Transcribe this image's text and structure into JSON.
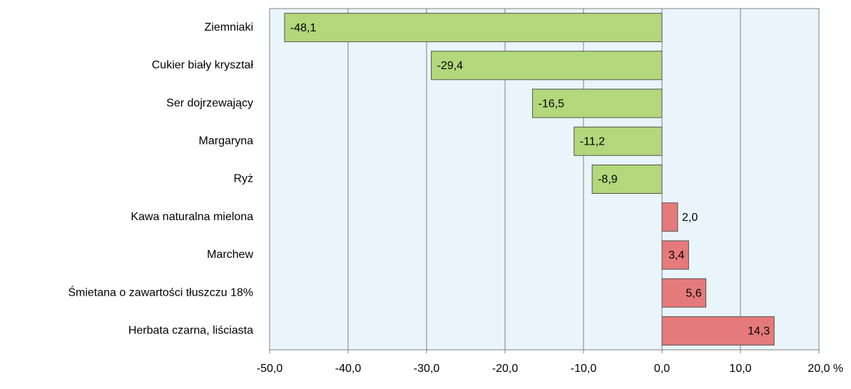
{
  "chart_data": {
    "type": "hbar",
    "categories": [
      "Ziemniaki",
      "Cukier biały kryształ",
      "Ser dojrzewający",
      "Margaryna",
      "Ryż",
      "Kawa naturalna mielona",
      "Marchew",
      "Śmietana o zawartości tłuszczu 18%",
      "Herbata czarna, liściasta"
    ],
    "values": [
      -48.1,
      -29.4,
      -16.5,
      -11.2,
      -8.9,
      2.0,
      3.4,
      5.6,
      14.3
    ],
    "value_labels": [
      "-48,1",
      "-29,4",
      "-16,5",
      "-11,2",
      "-8,9",
      "2,0",
      "3,4",
      "5,6",
      "14,3"
    ],
    "negative_color": "#b3d77b",
    "positive_color": "#e57a7a",
    "xlim": [
      -50,
      20
    ],
    "xticks": [
      {
        "value": -50,
        "label": "-50,0"
      },
      {
        "value": -40,
        "label": "-40,0"
      },
      {
        "value": -30,
        "label": "-30,0"
      },
      {
        "value": -20,
        "label": "-20,0"
      },
      {
        "value": -10,
        "label": "-10,0"
      },
      {
        "value": 0,
        "label": "0,0"
      },
      {
        "value": 10,
        "label": "10,0"
      },
      {
        "value": 20,
        "label": "20,0"
      }
    ],
    "x_unit": "%",
    "grid": true
  }
}
